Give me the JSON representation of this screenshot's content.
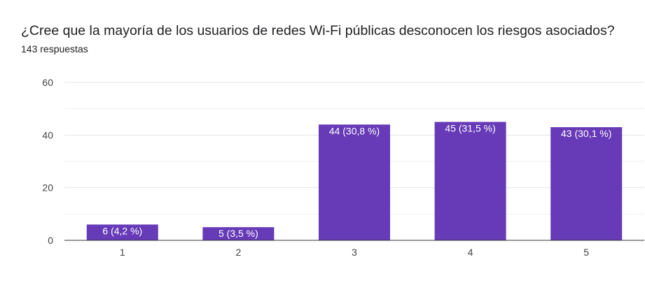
{
  "question": {
    "title": "¿Cree que la mayoría de los usuarios de redes Wi-Fi públicas desconocen los riesgos asociados?",
    "responses": "143 respuestas"
  },
  "colors": {
    "bar": "#673ab7",
    "grid": "#e6e6e6",
    "axis": "#333333"
  },
  "chart_data": {
    "type": "bar",
    "title": "¿Cree que la mayoría de los usuarios de redes Wi-Fi públicas desconocen los riesgos asociados?",
    "categories": [
      "1",
      "2",
      "3",
      "4",
      "5"
    ],
    "values": [
      6,
      5,
      44,
      45,
      43
    ],
    "data_labels": [
      "6 (4,2 %)",
      "5 (3,5 %)",
      "44 (30,8 %)",
      "45 (31,5 %)",
      "43 (30,1 %)"
    ],
    "ylim": [
      0,
      60
    ],
    "yticks": [
      0,
      20,
      40,
      60
    ],
    "grid": true,
    "legend": "none"
  }
}
